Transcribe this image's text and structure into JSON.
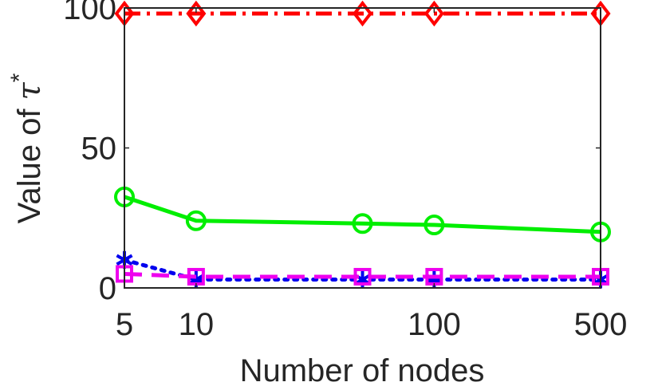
{
  "chart_data": {
    "type": "line",
    "title": "",
    "xlabel": "Number of nodes",
    "ylabel_prefix": "Value of ",
    "ylabel_symbol": "τ",
    "ylabel_superscript": "*",
    "x_scale": "log",
    "xlim": [
      5,
      500
    ],
    "ylim": [
      0,
      100
    ],
    "x_ticks": [
      5,
      10,
      100,
      500
    ],
    "x_tick_labels": [
      "5",
      "10",
      "100",
      "500"
    ],
    "y_ticks": [
      0,
      50,
      100
    ],
    "y_tick_labels": [
      "0",
      "50",
      "100"
    ],
    "grid": false,
    "legend": "none",
    "x": [
      5,
      10,
      50,
      100,
      500
    ],
    "series": [
      {
        "values": [
          98,
          98,
          98,
          98,
          98
        ],
        "color": "#ff0000",
        "line_style": "dash-dot",
        "marker": "diamond"
      },
      {
        "values": [
          32.5,
          24,
          23,
          22.5,
          20
        ],
        "color": "#00ee00",
        "line_style": "solid",
        "marker": "circle"
      },
      {
        "values": [
          10,
          3,
          3,
          3,
          3
        ],
        "color": "#0000ee",
        "line_style": "dotted",
        "marker": "asterisk"
      },
      {
        "values": [
          5,
          4,
          4,
          4,
          4
        ],
        "color": "#ee00ee",
        "line_style": "dashed",
        "marker": "square"
      }
    ]
  }
}
